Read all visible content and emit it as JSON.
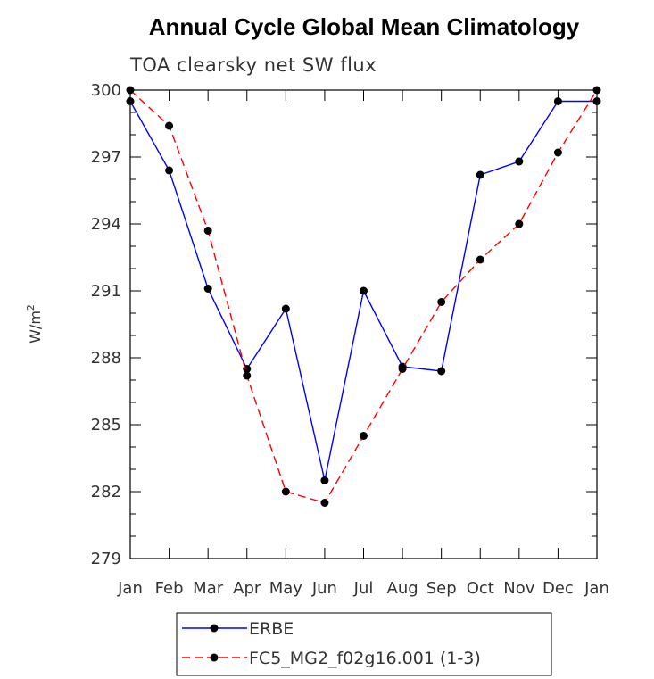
{
  "chart_data": {
    "type": "line",
    "title": "Annual Cycle Global Mean Climatology",
    "subtitle": "TOA clearsky net SW flux",
    "ylabel": "W/m",
    "ylabel_sup": "2",
    "categories": [
      "Jan",
      "Feb",
      "Mar",
      "Apr",
      "May",
      "Jun",
      "Jul",
      "Aug",
      "Sep",
      "Oct",
      "Nov",
      "Dec",
      "Jan"
    ],
    "ylim": [
      279,
      300
    ],
    "yticks": [
      "279",
      "282",
      "285",
      "288",
      "291",
      "294",
      "297",
      "300"
    ],
    "series": [
      {
        "name": "ERBE",
        "color": "#0000ff",
        "line_style": "solid",
        "marker": "filled-circle",
        "values": [
          299.5,
          296.4,
          291.1,
          287.5,
          290.2,
          282.5,
          291.0,
          287.6,
          287.4,
          296.2,
          296.8,
          299.5,
          299.5
        ]
      },
      {
        "name": "FC5_MG2_f02g16.001 (1-3)",
        "color": "#ff0000",
        "line_style": "dashed",
        "marker": "filled-circle",
        "values": [
          300.0,
          298.4,
          293.7,
          287.2,
          282.0,
          281.5,
          284.5,
          287.5,
          290.5,
          292.4,
          294.0,
          297.2,
          300.0
        ]
      }
    ],
    "legend_placement": "bottom-center",
    "grid": false
  }
}
